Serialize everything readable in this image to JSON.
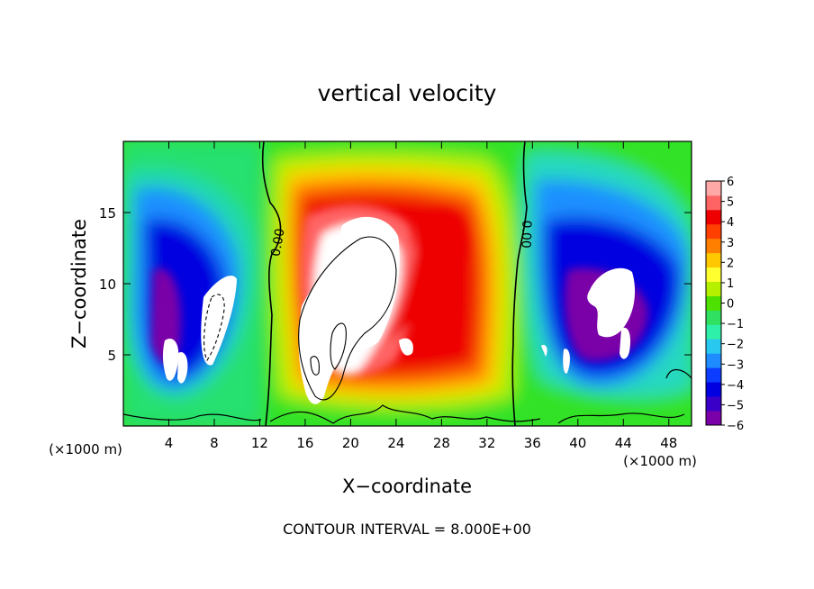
{
  "chart_data": {
    "type": "heatmap",
    "title": "vertical velocity",
    "xlabel": "X−coordinate",
    "ylabel": "Z−coordinate",
    "x_unit_left": "(×1000 m)",
    "x_unit_right": "(×1000 m)",
    "footer": "CONTOUR INTERVAL = 8.000E+00",
    "xlim": [
      0,
      50
    ],
    "ylim": [
      0,
      20
    ],
    "x_ticks": [
      4,
      8,
      12,
      16,
      20,
      24,
      28,
      32,
      36,
      40,
      44,
      48
    ],
    "y_ticks": [
      5,
      10,
      15
    ],
    "colorbar": {
      "min": -6,
      "max": 6,
      "tick_labels": [
        "6",
        "5",
        "4",
        "3",
        "2",
        "1",
        "0",
        "−1",
        "−2",
        "−3",
        "−4",
        "−5",
        "−6"
      ],
      "colors": [
        "#7a00a8",
        "#3b00c8",
        "#0000e0",
        "#0b3cff",
        "#1e8cff",
        "#28c8f0",
        "#2ef0a8",
        "#30e060",
        "#4ee000",
        "#b4f000",
        "#ffff30",
        "#ffc800",
        "#ff8000",
        "#ff4000",
        "#ee0000",
        "#ff6464",
        "#ffa8a8"
      ]
    },
    "contour_labels": [
      "0.00",
      "0.00"
    ],
    "features": [
      {
        "name": "main-updraft",
        "x": 22,
        "z": 9,
        "value": 6
      },
      {
        "name": "upper-anvil-updraft",
        "x": 29,
        "z": 11,
        "value": 4
      },
      {
        "name": "left-downdraft",
        "x": 7,
        "z": 8,
        "value": -6
      },
      {
        "name": "right-downdraft",
        "x": 43,
        "z": 9,
        "value": -6
      }
    ]
  }
}
